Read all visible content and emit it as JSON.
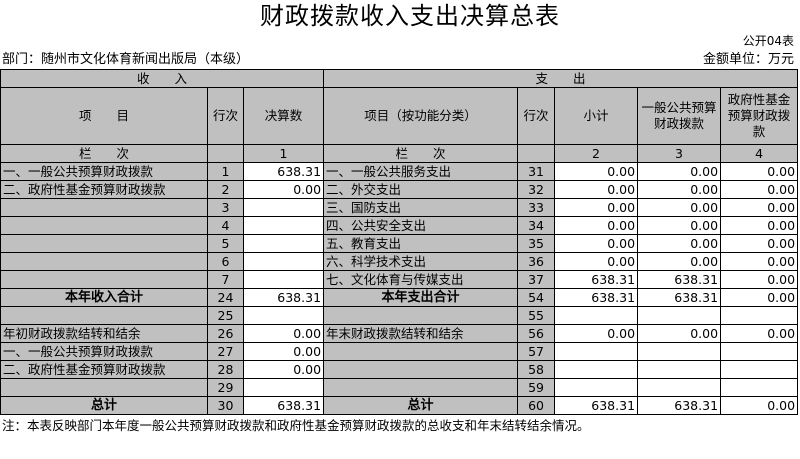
{
  "title": "财政拨款收入支出决算总表",
  "form_no": "公开04表",
  "department": "部门：随州市文化体育新闻出版局（本级）",
  "unit": "金额单位：万元",
  "headers": {
    "income": "收　　入",
    "expense": "支　　出",
    "income_item": "项　　目",
    "row_no": "行次",
    "final_amount": "决算数",
    "expense_item": "项目（按功能分类）",
    "row_no2": "行次",
    "subtotal": "小计",
    "general_budget": "一般公共预算财政拨款",
    "gov_fund": "政府性基金预算财政拨款",
    "col_index": "栏　　次",
    "col_index2": "栏　　次",
    "col1": "1",
    "col2": "2",
    "col3": "3",
    "col4": "4"
  },
  "rows": [
    {
      "li": "一、一般公共预算财政拨款",
      "ln": "1",
      "lv": "638.31",
      "ri": "一、一般公共服务支出",
      "rn": "31",
      "s": "0.00",
      "g": "0.00",
      "f": "0.00"
    },
    {
      "li": "二、政府性基金预算财政拨款",
      "ln": "2",
      "lv": "0.00",
      "ri": "二、外交支出",
      "rn": "32",
      "s": "0.00",
      "g": "0.00",
      "f": "0.00"
    },
    {
      "li": "",
      "ln": "3",
      "lv": "",
      "ri": "三、国防支出",
      "rn": "33",
      "s": "0.00",
      "g": "0.00",
      "f": "0.00"
    },
    {
      "li": "",
      "ln": "4",
      "lv": "",
      "ri": "四、公共安全支出",
      "rn": "34",
      "s": "0.00",
      "g": "0.00",
      "f": "0.00"
    },
    {
      "li": "",
      "ln": "5",
      "lv": "",
      "ri": "五、教育支出",
      "rn": "35",
      "s": "0.00",
      "g": "0.00",
      "f": "0.00"
    },
    {
      "li": "",
      "ln": "6",
      "lv": "",
      "ri": "六、科学技术支出",
      "rn": "36",
      "s": "0.00",
      "g": "0.00",
      "f": "0.00"
    },
    {
      "li": "",
      "ln": "7",
      "lv": "",
      "ri": "七、文化体育与传媒支出",
      "rn": "37",
      "s": "638.31",
      "g": "638.31",
      "f": "0.00"
    },
    {
      "li": "本年收入合计",
      "ln": "24",
      "lv": "638.31",
      "ri": "本年支出合计",
      "rn": "54",
      "s": "638.31",
      "g": "638.31",
      "f": "0.00",
      "bold": true
    },
    {
      "li": "",
      "ln": "25",
      "lv": "",
      "ri": "",
      "rn": "55",
      "s": "",
      "g": "",
      "f": ""
    },
    {
      "li": "年初财政拨款结转和结余",
      "ln": "26",
      "lv": "0.00",
      "ri": "年末财政拨款结转和结余",
      "rn": "56",
      "s": "0.00",
      "g": "0.00",
      "f": "0.00"
    },
    {
      "li": "一、一般公共预算财政拨款",
      "ln": "27",
      "lv": "0.00",
      "ri": "",
      "rn": "57",
      "s": "",
      "g": "",
      "f": ""
    },
    {
      "li": "二、政府性基金预算财政拨款",
      "ln": "28",
      "lv": "0.00",
      "ri": "",
      "rn": "58",
      "s": "",
      "g": "",
      "f": ""
    },
    {
      "li": "",
      "ln": "29",
      "lv": "",
      "ri": "",
      "rn": "59",
      "s": "",
      "g": "",
      "f": ""
    },
    {
      "li": "总计",
      "ln": "30",
      "lv": "638.31",
      "ri": "总计",
      "rn": "60",
      "s": "638.31",
      "g": "638.31",
      "f": "0.00",
      "bold": true
    }
  ],
  "note": "注：本表反映部门本年度一般公共预算财政拨款和政府性基金预算财政拨款的总收支和年末结转结余情况。"
}
